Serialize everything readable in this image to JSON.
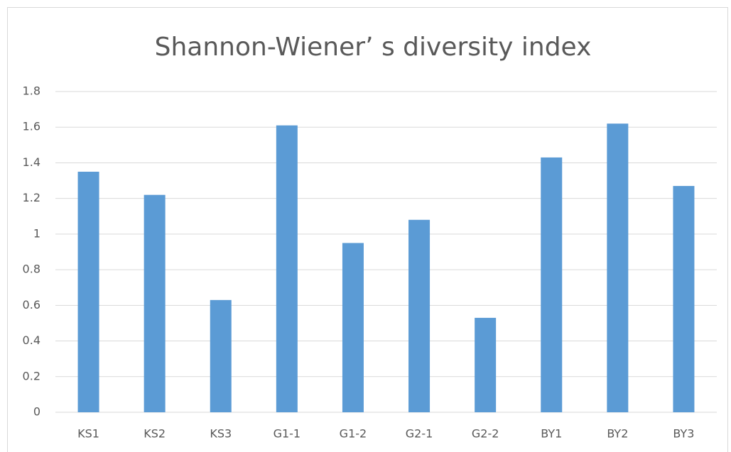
{
  "chart_data": {
    "type": "bar",
    "title": "Shannon-Wiener’ s diversity index",
    "categories": [
      "KS1",
      "KS2",
      "KS3",
      "G1-1",
      "G1-2",
      "G2-1",
      "G2-2",
      "BY1",
      "BY2",
      "BY3"
    ],
    "values": [
      1.35,
      1.22,
      0.63,
      1.61,
      0.95,
      1.08,
      0.53,
      1.43,
      1.62,
      1.27
    ],
    "color": "#5b9bd5",
    "ylim": [
      0,
      1.8
    ],
    "yticks": [
      0,
      0.2,
      0.4,
      0.6,
      0.8,
      1,
      1.2,
      1.4,
      1.6,
      1.8
    ],
    "grid": true
  }
}
